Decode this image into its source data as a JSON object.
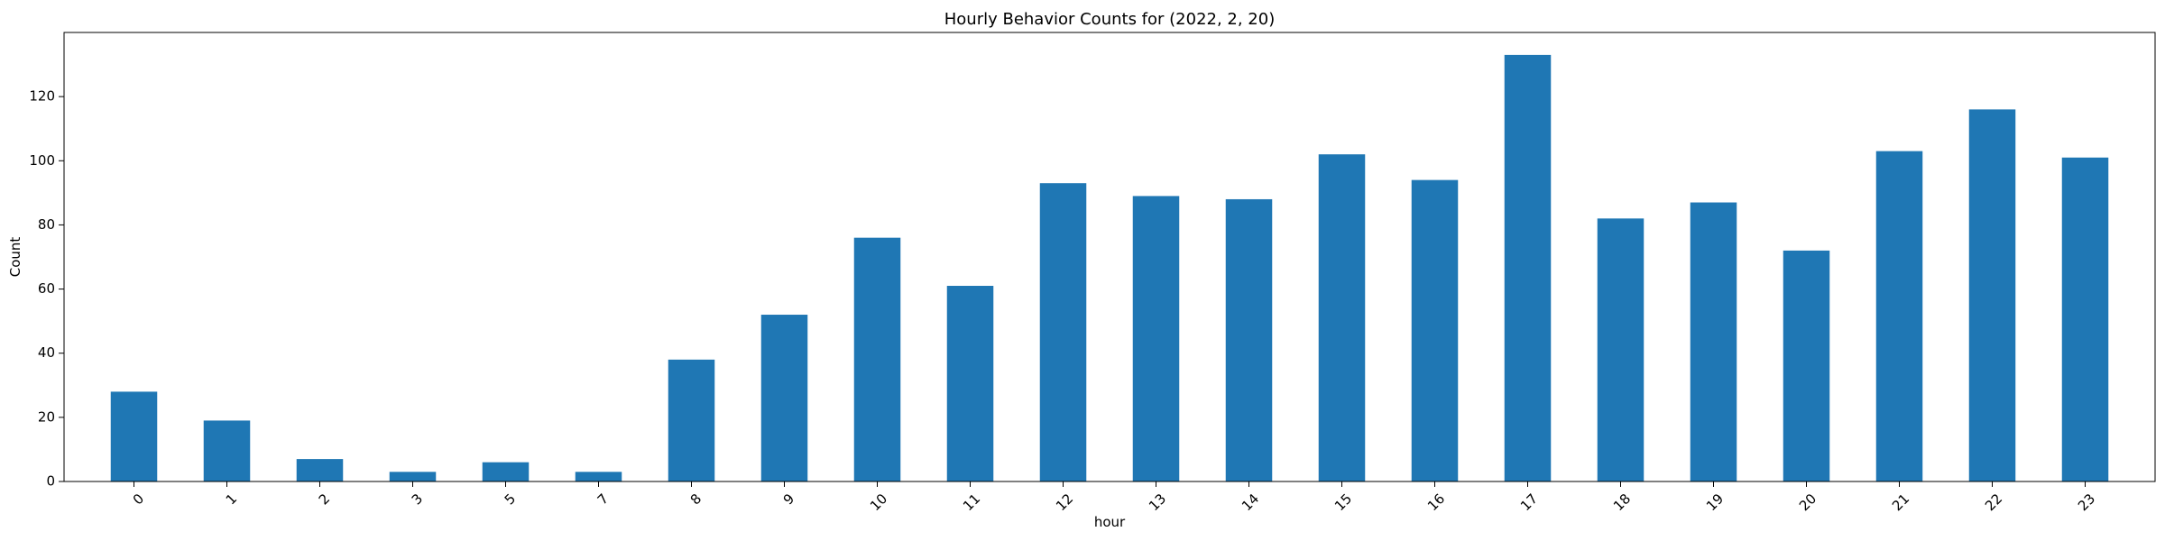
{
  "chart_data": {
    "type": "bar",
    "title": "Hourly Behavior Counts for (2022, 2, 20)",
    "xlabel": "hour",
    "ylabel": "Count",
    "categories": [
      "0",
      "1",
      "2",
      "3",
      "5",
      "7",
      "8",
      "9",
      "10",
      "11",
      "12",
      "13",
      "14",
      "15",
      "16",
      "17",
      "18",
      "19",
      "20",
      "21",
      "22",
      "23"
    ],
    "values": [
      28,
      19,
      7,
      3,
      6,
      3,
      38,
      52,
      76,
      61,
      93,
      89,
      88,
      102,
      94,
      133,
      82,
      87,
      72,
      103,
      116,
      101
    ],
    "ylim": [
      0,
      140
    ],
    "yticks": [
      0,
      20,
      40,
      60,
      80,
      100,
      120
    ],
    "grid": false,
    "legend": "none",
    "bar_color": "#1f77b4",
    "xtick_rotation": 45
  }
}
